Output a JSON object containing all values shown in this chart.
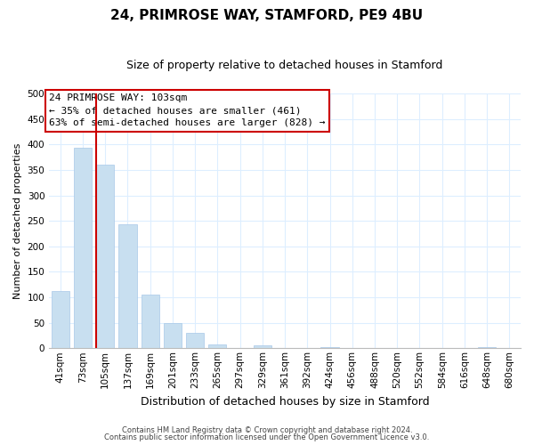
{
  "title": "24, PRIMROSE WAY, STAMFORD, PE9 4BU",
  "subtitle": "Size of property relative to detached houses in Stamford",
  "xlabel": "Distribution of detached houses by size in Stamford",
  "ylabel": "Number of detached properties",
  "bar_labels": [
    "41sqm",
    "73sqm",
    "105sqm",
    "137sqm",
    "169sqm",
    "201sqm",
    "233sqm",
    "265sqm",
    "297sqm",
    "329sqm",
    "361sqm",
    "392sqm",
    "424sqm",
    "456sqm",
    "488sqm",
    "520sqm",
    "552sqm",
    "584sqm",
    "616sqm",
    "648sqm",
    "680sqm"
  ],
  "bar_values": [
    112,
    394,
    360,
    243,
    105,
    50,
    30,
    8,
    0,
    5,
    0,
    0,
    2,
    0,
    0,
    0,
    0,
    0,
    0,
    2,
    0
  ],
  "bar_color": "#c8dff0",
  "bar_edge_color": "#a8c8e8",
  "highlight_line_color": "#cc0000",
  "highlight_bar_index": 2,
  "bar_width": 0.8,
  "ylim": [
    0,
    500
  ],
  "yticks": [
    0,
    50,
    100,
    150,
    200,
    250,
    300,
    350,
    400,
    450,
    500
  ],
  "annotation_title": "24 PRIMROSE WAY: 103sqm",
  "annotation_line1": "← 35% of detached houses are smaller (461)",
  "annotation_line2": "63% of semi-detached houses are larger (828) →",
  "footer_line1": "Contains HM Land Registry data © Crown copyright and database right 2024.",
  "footer_line2": "Contains public sector information licensed under the Open Government Licence v3.0.",
  "grid_color": "#ddeeff",
  "background_color": "#ffffff",
  "title_fontsize": 11,
  "subtitle_fontsize": 9,
  "ylabel_fontsize": 8,
  "xlabel_fontsize": 9,
  "tick_fontsize": 7.5,
  "annotation_fontsize": 8,
  "footer_fontsize": 6
}
